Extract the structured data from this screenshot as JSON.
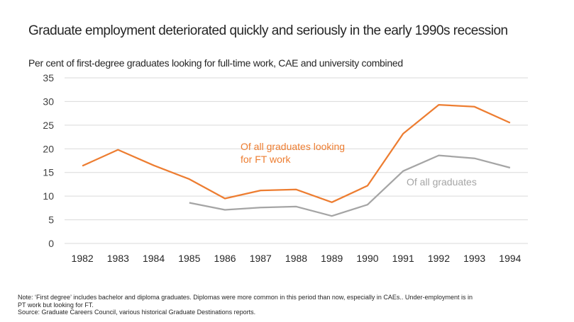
{
  "title": "Graduate employment deteriorated quickly and seriously in the early 1990s recession",
  "subtitle": "Per cent of first-degree graduates looking for full-time work, CAE and university combined",
  "colors": {
    "series_all_looking_ft": "#ED7D31",
    "series_all_graduates": "#A5A5A5",
    "gridline": "#D9D9D9"
  },
  "annotations": {
    "orange_line1": "Of all graduates looking",
    "orange_line2": "for FT work",
    "gray": "Of all graduates"
  },
  "notes": {
    "line1": "Note: ‘First degree’ includes bachelor and diploma graduates. Diplomas were more common  in this period than now, especially in CAEs.. Under-employment  is in",
    "line2": "PT work but looking for FT.",
    "line3": "Source: Graduate Careers Council, various historical Graduate Destinations reports."
  },
  "chart_data": {
    "type": "line",
    "title": "Graduate employment deteriorated quickly and seriously in the early 1990s recession",
    "subtitle": "Per cent of first-degree graduates looking for full-time work, CAE and university combined",
    "xlabel": "",
    "ylabel": "",
    "categories": [
      "1982",
      "1983",
      "1984",
      "1985",
      "1986",
      "1987",
      "1988",
      "1989",
      "1990",
      "1991",
      "1992",
      "1993",
      "1994"
    ],
    "series": [
      {
        "name": "Of all graduates looking for FT work",
        "color": "#ED7D31",
        "values": [
          16.4,
          19.8,
          16.5,
          13.6,
          9.5,
          11.2,
          11.4,
          8.7,
          12.2,
          23.2,
          29.3,
          28.9,
          25.5
        ]
      },
      {
        "name": "Of all graduates",
        "color": "#A5A5A5",
        "values": [
          null,
          null,
          null,
          8.6,
          7.1,
          7.6,
          7.8,
          5.8,
          8.2,
          15.3,
          18.6,
          18.0,
          16.0
        ]
      }
    ],
    "ylim": [
      0,
      35
    ],
    "yticks": [
      0,
      5,
      10,
      15,
      20,
      25,
      30,
      35
    ],
    "grid": true,
    "legend": "inline annotations"
  }
}
